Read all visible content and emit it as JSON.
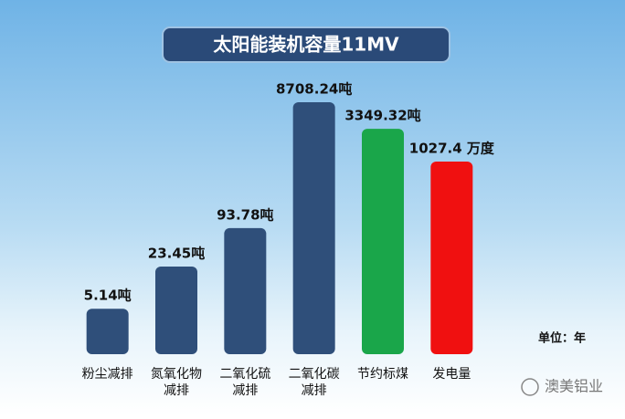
{
  "chart_data": {
    "type": "bar",
    "title": "太阳能装机容量11MV",
    "categories": [
      [
        "粉尘减排"
      ],
      [
        "氮氧化物",
        "减排"
      ],
      [
        "二氧化硫",
        "减排"
      ],
      [
        "二氧化碳",
        "减排"
      ],
      [
        "节约标煤"
      ],
      [
        "发电量"
      ]
    ],
    "values": [
      5.14,
      23.45,
      93.78,
      8708.24,
      3349.32,
      1027.4
    ],
    "value_labels": [
      "5.14吨",
      "23.45吨",
      "93.78吨",
      "8708.24吨",
      "3349.32吨",
      "1027.4 万度"
    ],
    "colors": [
      "#2f4f7a",
      "#2f4f7a",
      "#2f4f7a",
      "#2f4f7a",
      "#1aa64a",
      "#f01010"
    ],
    "log_scale": true,
    "unit_note": "单位：年",
    "watermark": "澳美铝业"
  }
}
